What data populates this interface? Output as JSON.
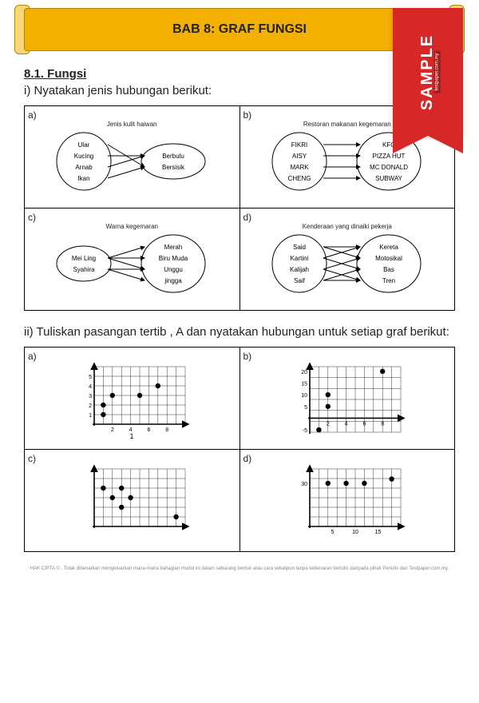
{
  "banner": {
    "title": "BAB 8: GRAF FUNGSI"
  },
  "ribbon": {
    "text": "SAMPLE",
    "sub": "testpaper.com.my"
  },
  "section": {
    "number": "8.1. Fungsi"
  },
  "q1": {
    "prompt": "i) Nyatakan jenis hubungan berikut:",
    "a": {
      "title": "Jenis kulit haiwan",
      "left": [
        "Ular",
        "Kucing",
        "Arnab",
        "Ikan"
      ],
      "right": [
        "Berbulu",
        "Bersisik"
      ],
      "edges": [
        [
          0,
          1
        ],
        [
          1,
          0
        ],
        [
          2,
          0
        ],
        [
          3,
          1
        ]
      ]
    },
    "b": {
      "title": "Restoran makanan kegemaran",
      "left": [
        "FIKRI",
        "AISY",
        "MARK",
        "CHENG"
      ],
      "right": [
        "KFC",
        "PIZZA HUT",
        "MC DONALD",
        "SUBWAY"
      ],
      "edges": [
        [
          0,
          0
        ],
        [
          1,
          1
        ],
        [
          2,
          2
        ],
        [
          3,
          3
        ]
      ]
    },
    "c": {
      "title": "Warna kegemaran",
      "left": [
        "Mei Ling",
        "Syahira"
      ],
      "right": [
        "Merah",
        "Biru Muda",
        "Unggu",
        "jingga"
      ],
      "edges": [
        [
          0,
          0
        ],
        [
          0,
          1
        ],
        [
          1,
          2
        ],
        [
          1,
          3
        ],
        [
          0,
          2
        ]
      ]
    },
    "d": {
      "title": "Kenderaan yang dinaiki pekerja",
      "left": [
        "Said",
        "Kartini",
        "Kalijah",
        "Saif"
      ],
      "right": [
        "Kereta",
        "Motosikal",
        "Bas",
        "Tren"
      ],
      "edges": [
        [
          0,
          0
        ],
        [
          0,
          1
        ],
        [
          1,
          2
        ],
        [
          1,
          0
        ],
        [
          2,
          3
        ],
        [
          2,
          1
        ],
        [
          3,
          2
        ],
        [
          3,
          3
        ]
      ]
    }
  },
  "q2": {
    "prompt": "ii) Tuliskan pasangan tertib , A dan nyatakan hubungan untuk setiap graf berikut:",
    "a": {
      "xticks": [
        2,
        4,
        6,
        8
      ],
      "yticks": [
        1,
        2,
        3,
        4,
        5
      ],
      "xmax": 10,
      "ymax": 6,
      "points": [
        [
          1,
          1
        ],
        [
          1,
          2
        ],
        [
          2,
          3
        ],
        [
          5,
          3
        ],
        [
          7,
          4
        ]
      ],
      "caption": "1"
    },
    "b": {
      "xticks": [
        2,
        4,
        6,
        8
      ],
      "yticks": [
        -5,
        5,
        10,
        15,
        20
      ],
      "xmax": 10,
      "ymin": -6,
      "ymax": 22,
      "points": [
        [
          1,
          -5
        ],
        [
          2,
          5
        ],
        [
          2,
          10
        ],
        [
          8,
          20
        ]
      ]
    },
    "c": {
      "xticks": [],
      "yticks": [],
      "xmax": 10,
      "ymax": 6,
      "points": [
        [
          1,
          4
        ],
        [
          2,
          3
        ],
        [
          3,
          4
        ],
        [
          3,
          2
        ],
        [
          4,
          3
        ],
        [
          9,
          1
        ]
      ]
    },
    "d": {
      "xticks": [
        5,
        10,
        15
      ],
      "yticks": [
        30
      ],
      "xmax": 20,
      "ymax": 40,
      "points": [
        [
          4,
          30
        ],
        [
          8,
          30
        ],
        [
          12,
          30
        ],
        [
          18,
          33
        ]
      ]
    }
  },
  "footer": "HAK CIPTA © . Tidak dibenarkan mengeluarkan mana-mana bahagian modul ini dalam sebarang bentuk atau cara sekalipun tanpa kebenaran bertulis daripada pihak Penulis dan Testpaper.com.my.",
  "style": {
    "banner_bg": "#f3b000",
    "ribbon_bg": "#d82727",
    "point_color": "#000000",
    "grid_color": "#000000"
  }
}
